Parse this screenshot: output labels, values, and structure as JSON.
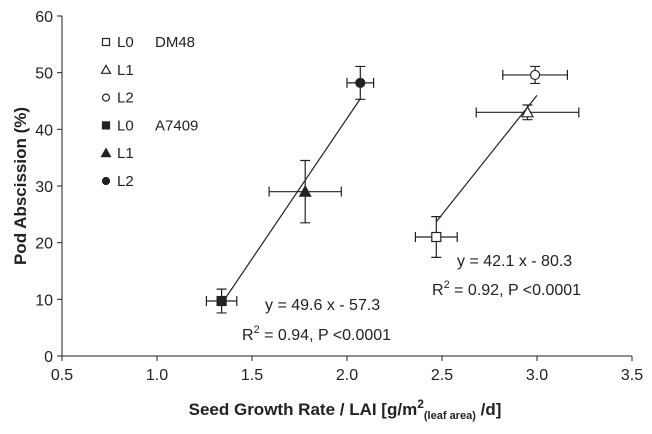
{
  "chart_data": {
    "type": "scatter",
    "x_label": [
      "Seed Growth Rate / LAI [g/m",
      "2",
      "(leaf area)",
      " /d]"
    ],
    "y_label": "Pod Abscission (%)",
    "xlim": [
      0.5,
      3.5
    ],
    "ylim": [
      0,
      60
    ],
    "xticks": [
      {
        "value": 0.5,
        "label": "0.5"
      },
      {
        "value": 1.0,
        "label": "1.0"
      },
      {
        "value": 1.5,
        "label": "1.5"
      },
      {
        "value": 2.0,
        "label": "2.0"
      },
      {
        "value": 2.5,
        "label": "2.5"
      },
      {
        "value": 3.0,
        "label": "3.0"
      },
      {
        "value": 3.5,
        "label": "3.5"
      }
    ],
    "yticks": [
      0,
      10,
      20,
      30,
      40,
      50,
      60
    ],
    "grid": false,
    "legend": "top-left",
    "series": [
      {
        "name": "L0",
        "group": "DM48",
        "marker": "square",
        "filled": false,
        "color": "#222222",
        "x": [
          2.47
        ],
        "values": [
          21
        ],
        "xerr": [
          0.11
        ],
        "yerr": [
          3.6
        ]
      },
      {
        "name": "L1",
        "marker": "triangle",
        "filled": false,
        "color": "#222222",
        "x": [
          2.95
        ],
        "values": [
          43
        ],
        "xerr": [
          0.27
        ],
        "yerr": [
          1.3
        ]
      },
      {
        "name": "L2",
        "marker": "circle",
        "filled": false,
        "color": "#222222",
        "x": [
          2.99
        ],
        "values": [
          49.6
        ],
        "xerr": [
          0.17
        ],
        "yerr": [
          1.5
        ]
      },
      {
        "name": "L0",
        "group": "A7409",
        "marker": "square",
        "filled": true,
        "color": "#222222",
        "x": [
          1.34
        ],
        "values": [
          9.7
        ],
        "xerr": [
          0.08
        ],
        "yerr": [
          2.1
        ]
      },
      {
        "name": "L1",
        "marker": "triangle",
        "filled": true,
        "color": "#222222",
        "x": [
          1.78
        ],
        "values": [
          29
        ],
        "xerr": [
          0.19
        ],
        "yerr": [
          5.5
        ]
      },
      {
        "name": "L2",
        "marker": "circle",
        "filled": true,
        "color": "#222222",
        "x": [
          2.07
        ],
        "values": [
          48.2
        ],
        "xerr": [
          0.07
        ],
        "yerr": [
          2.9
        ]
      }
    ],
    "fit_lines": [
      {
        "x": [
          1.34,
          2.07
        ],
        "values": [
          9.2,
          45.4
        ],
        "color": "#222222"
      },
      {
        "x": [
          2.47,
          3.0
        ],
        "values": [
          23.7,
          46.0
        ],
        "color": "#222222"
      }
    ],
    "annotations": [
      {
        "equation": "y = 49.6 x - 57.3",
        "r": "R",
        "sup": "2",
        "stats": " = 0.94, P <0.0001"
      },
      {
        "equation": "y = 42.1 x - 80.3",
        "r": "R",
        "sup": "2",
        "stats": " = 0.92, P <0.0001"
      }
    ]
  }
}
